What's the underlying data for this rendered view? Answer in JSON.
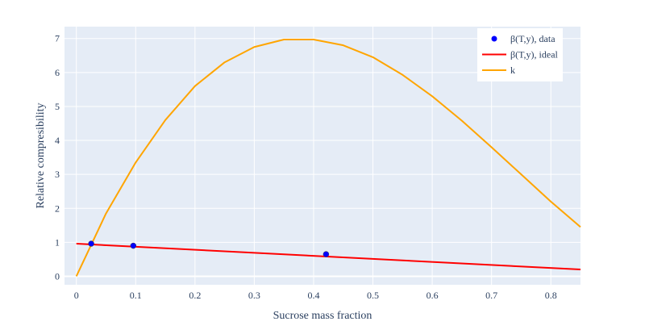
{
  "chart_data": {
    "type": "line",
    "xlabel": "Sucrose mass fraction",
    "ylabel": "Relative compresibility",
    "xlim": [
      -0.02,
      0.85
    ],
    "ylim": [
      -0.25,
      7.35
    ],
    "x_ticks": [
      0,
      0.1,
      0.2,
      0.3,
      0.4,
      0.5,
      0.6,
      0.7,
      0.8
    ],
    "x_tick_labels": [
      "0",
      "0.1",
      "0.2",
      "0.3",
      "0.4",
      "0.5",
      "0.6",
      "0.7",
      "0.8"
    ],
    "y_ticks": [
      0,
      1,
      2,
      3,
      4,
      5,
      6,
      7
    ],
    "y_tick_labels": [
      "0",
      "1",
      "2",
      "3",
      "4",
      "5",
      "6",
      "7"
    ],
    "grid": true,
    "legend_position": "top-right",
    "background_color": "#e5ecf6",
    "series": [
      {
        "name": "β(T,y), data",
        "mode": "markers",
        "color": "#0000ff",
        "x": [
          0.025,
          0.096,
          0.421
        ],
        "y": [
          0.96,
          0.9,
          0.65
        ]
      },
      {
        "name": "β(T,y), ideal",
        "mode": "line",
        "color": "#ff0000",
        "x": [
          0,
          0.85
        ],
        "y": [
          0.96,
          0.2
        ]
      },
      {
        "name": "k",
        "mode": "line",
        "color": "#ffa500",
        "x": [
          0,
          0.05,
          0.1,
          0.15,
          0.2,
          0.25,
          0.3,
          0.35,
          0.4,
          0.45,
          0.5,
          0.55,
          0.6,
          0.65,
          0.7,
          0.75,
          0.8,
          0.85
        ],
        "y": [
          0,
          1.85,
          3.35,
          4.6,
          5.6,
          6.3,
          6.75,
          6.97,
          6.97,
          6.8,
          6.45,
          5.93,
          5.3,
          4.58,
          3.8,
          3.0,
          2.2,
          1.45
        ]
      }
    ]
  }
}
